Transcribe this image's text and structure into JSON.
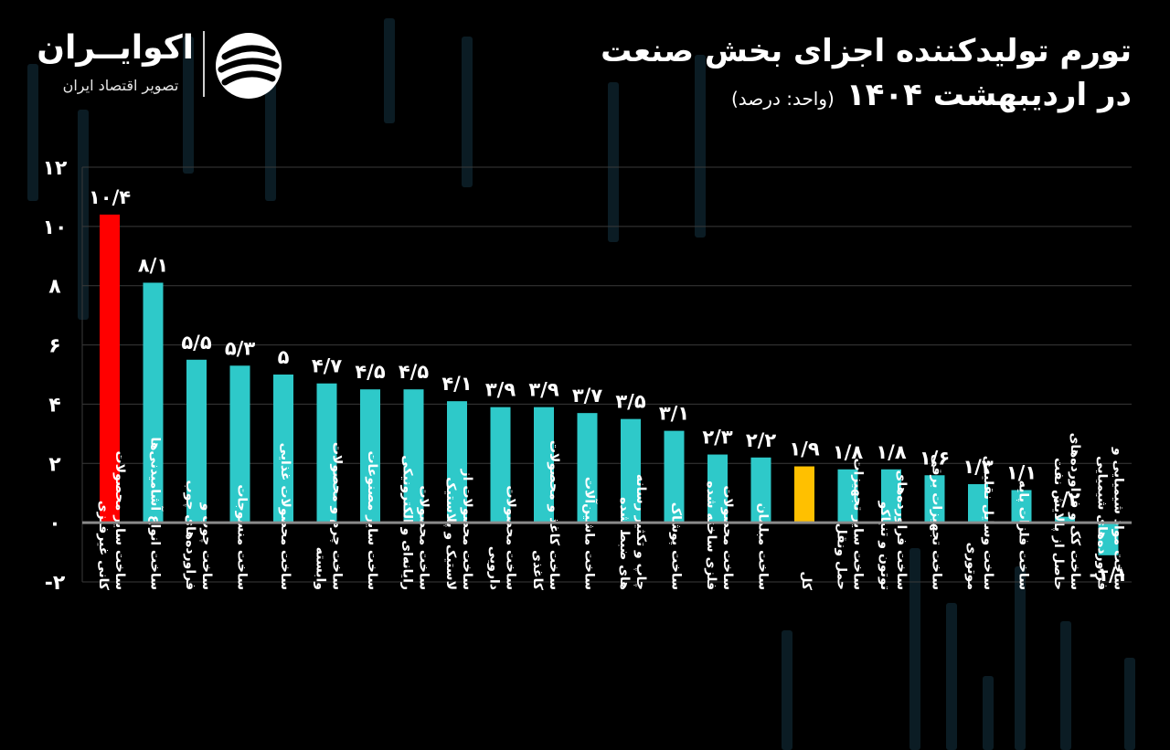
{
  "header": {
    "title_line1": "تورم تولیدکننده اجزای بخش صنعت",
    "title_line2": "در اردیبهشت ۱۴۰۴",
    "unit": "(واحد: درصد)"
  },
  "brand": {
    "name": "اکوایــران",
    "tagline": "تصویر اقتصاد ایران"
  },
  "colors": {
    "background": "#000000",
    "bar_default": "#2ec9c9",
    "bar_highlight_max": "#ff0000",
    "bar_highlight_total": "#ffc000",
    "grid": "#3a3a3a",
    "zero_line": "#8a8a8a",
    "text": "#ffffff"
  },
  "chart_data": {
    "type": "bar",
    "title": "تورم تولیدکننده اجزای بخش صنعت در اردیبهشت ۱۴۰۴",
    "xlabel": "",
    "ylabel": "",
    "ylim": [
      -2,
      12
    ],
    "yticks": [
      -2,
      0,
      2,
      4,
      6,
      8,
      10,
      12
    ],
    "ytick_labels": [
      "-۲",
      "۰",
      "۲",
      "۴",
      "۶",
      "۸",
      "۱۰",
      "۱۲"
    ],
    "grid": "horizontal",
    "categories": [
      [
        "ساخت سایر محصولات",
        "کانی غیرفلزی"
      ],
      [
        "ساخت انواع آشامیدنی‌ها"
      ],
      [
        "ساخت چوب و",
        "فراورده‌های چوب"
      ],
      [
        "ساخت منسوجات"
      ],
      [
        "ساخت محصولات غذایی"
      ],
      [
        "ساخت چرم و محصولات",
        "وابسته"
      ],
      [
        "ساخت سایر مصنوعات"
      ],
      [
        "ساخت محصولات",
        "رایانه‌ای و الکترونیکی"
      ],
      [
        "ساخت محصولات از",
        "لاستیک و پلاستیک"
      ],
      [
        "ساخت محصولات",
        "دارویی"
      ],
      [
        "ساخت کاغذ و محصولات",
        "کاغذی"
      ],
      [
        "ساخت ماشین‌آلات"
      ],
      [
        "چاپ و تکثیر رسانه",
        "های ضبط شده"
      ],
      [
        "ساخت پوشاک"
      ],
      [
        "ساخت محصولات",
        "فلزی ساخته شده"
      ],
      [
        "ساخت مبلمان"
      ],
      [
        "کل"
      ],
      [
        "ساخت سایر تجهیزات",
        "حمل ونقل"
      ],
      [
        "ساخت فراورده‌های",
        "توتون و تنباکو"
      ],
      [
        "ساخت تجهیزات برقی"
      ],
      [
        "ساخت وسایل نقلیه‌ی",
        "موتوری"
      ],
      [
        "ساخت فلزات پایه"
      ],
      [
        "ساخت کک و فراورده‌های",
        "حاصل از پالایش نفت"
      ],
      [
        "ساخت مواد شیمیایی و",
        "فراورده‌های شیمیایی"
      ]
    ],
    "values": [
      10.4,
      8.1,
      5.5,
      5.3,
      5.0,
      4.7,
      4.5,
      4.5,
      4.1,
      3.9,
      3.9,
      3.7,
      3.5,
      3.1,
      2.3,
      2.2,
      1.9,
      1.8,
      1.8,
      1.6,
      1.3,
      1.1,
      0.2,
      -1.1
    ],
    "value_labels": [
      "۱۰/۴",
      "۸/۱",
      "۵/۵",
      "۵/۳",
      "۵",
      "۴/۷",
      "۴/۵",
      "۴/۵",
      "۴/۱",
      "۳/۹",
      "۳/۹",
      "۳/۷",
      "۳/۵",
      "۳/۱",
      "۲/۳",
      "۲/۲",
      "۱/۹",
      "۱/۸",
      "۱/۸",
      "۱/۶",
      "۱/۳",
      "۱/۱",
      "۰/۲",
      "-۱/۱"
    ],
    "highlight": {
      "0": "max",
      "16": "total"
    }
  }
}
